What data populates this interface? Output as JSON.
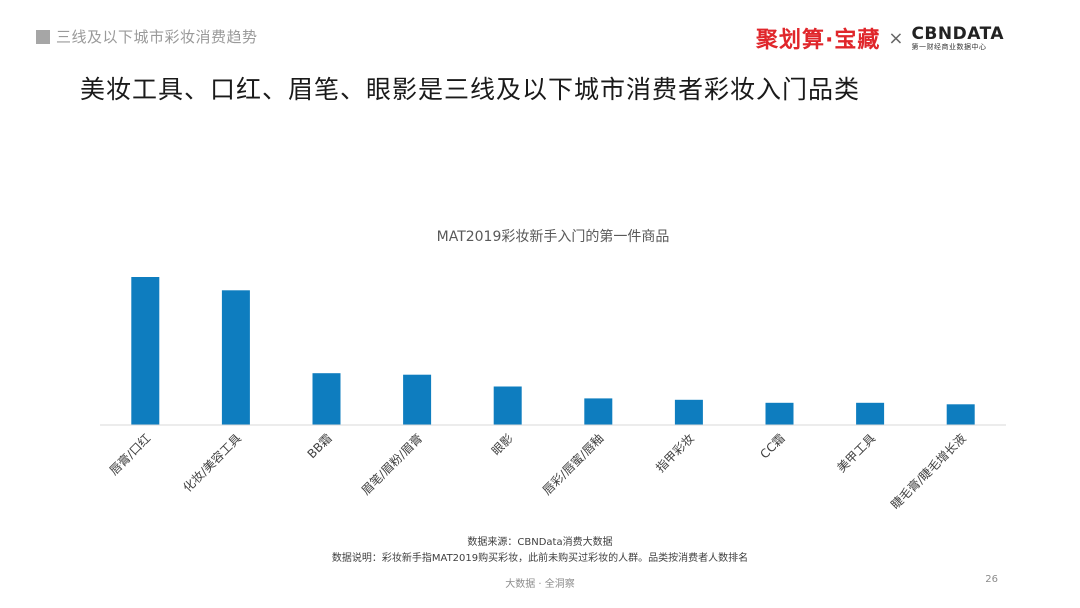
{
  "header": {
    "section_label": "三线及以下城市彩妆消费趋势",
    "brand_left": "聚划算·宝藏",
    "brand_separator": "×",
    "brand_right": "CBNDATA",
    "brand_right_sub": "第一财经商业数据中心"
  },
  "headline": "美妆工具、口红、眉笔、眼影是三线及以下城市消费者彩妆入门品类",
  "chart_data": {
    "type": "bar",
    "title": "MAT2019彩妆新手入门的第一件商品",
    "categories": [
      "唇膏/口红",
      "化妆/美容工具",
      "BB霜",
      "眉笔/眉粉/眉膏",
      "眼影",
      "唇彩/唇蜜/唇釉",
      "指甲彩妆",
      "CC霜",
      "美甲工具",
      "睫毛膏/睫毛增长液"
    ],
    "values": [
      100,
      91,
      35,
      34,
      26,
      18,
      17,
      15,
      15,
      14
    ],
    "ylim": [
      0,
      100
    ],
    "grid": false,
    "bar_color": "#0e7dbf"
  },
  "notes": {
    "source": "数据来源：CBNData消费大数据",
    "explanation": "数据说明：彩妆新手指MAT2019购买彩妆，此前未购买过彩妆的人群。品类按消费者人数排名"
  },
  "footer": {
    "tagline": "大数据 · 全洞察",
    "page_number": "26"
  }
}
